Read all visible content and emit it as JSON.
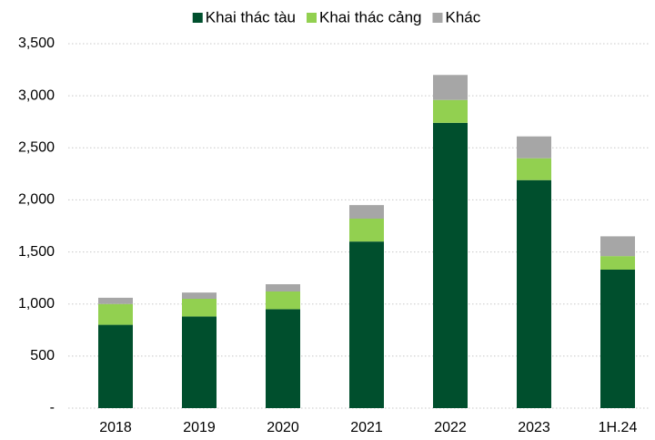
{
  "chart_data": {
    "type": "stacked_bar",
    "categories": [
      "2018",
      "2019",
      "2020",
      "2021",
      "2022",
      "2023",
      "1H.24"
    ],
    "series": [
      {
        "name": "Khai thác tàu",
        "color": "#004f2d",
        "values": [
          800,
          880,
          950,
          1600,
          2740,
          2190,
          1330
        ]
      },
      {
        "name": "Khai thác cảng",
        "color": "#92d050",
        "values": [
          200,
          170,
          170,
          220,
          220,
          210,
          130
        ]
      },
      {
        "name": "Khác",
        "color": "#a6a6a6",
        "values": [
          60,
          60,
          70,
          130,
          240,
          210,
          190
        ]
      }
    ],
    "ylim": [
      0,
      3500
    ],
    "yticks": [
      {
        "value": 0,
        "label": "-"
      },
      500,
      {
        "value": 1000,
        "label": "1,000"
      },
      {
        "value": 1500,
        "label": "1,500"
      },
      {
        "value": 2000,
        "label": "2,000"
      },
      {
        "value": 2500,
        "label": "2,500"
      },
      {
        "value": 3000,
        "label": "3,000"
      },
      {
        "value": 3500,
        "label": "3,500"
      }
    ],
    "grid": true,
    "legend": "top"
  }
}
